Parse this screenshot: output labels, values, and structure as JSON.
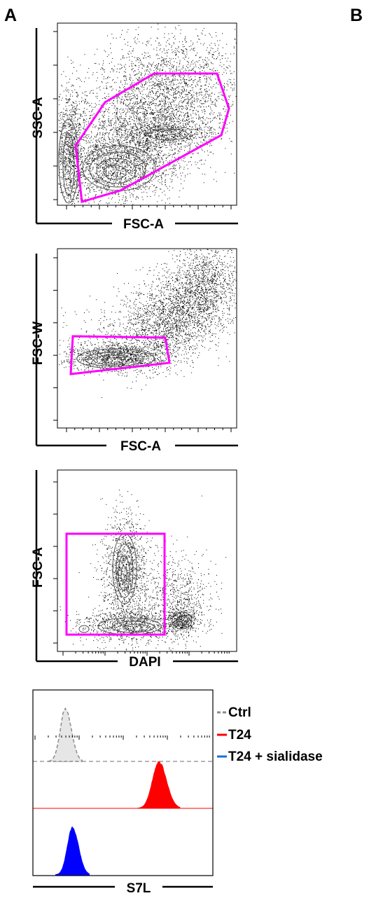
{
  "panel_labels": [
    "A",
    "B"
  ],
  "colors": {
    "gate": "#ff00ff",
    "ctrl": "#8c8c8c",
    "ctrl_fill": "#e6e6e6",
    "t24": "#ff0000",
    "sialidase": "#0000ff",
    "sialidase_legend": "#1a6fd6"
  },
  "chart_data": [
    {
      "type": "scatter",
      "subtype": "flow-cytometry density/contour plot with polygon gate",
      "xlabel": "FSC-A",
      "ylabel": "SSC-A",
      "gate": "polygon (cells)"
    },
    {
      "type": "scatter",
      "subtype": "flow-cytometry density/contour plot with polygon gate",
      "xlabel": "FSC-A",
      "ylabel": "FSC-W",
      "gate": "polygon (singlets)"
    },
    {
      "type": "scatter",
      "subtype": "flow-cytometry density/contour plot with rectangle gate",
      "xlabel": "DAPI",
      "ylabel": "FSC-A",
      "x_scale": "log",
      "gate": "rectangle (live cells)"
    },
    {
      "type": "area",
      "subtype": "stacked offset histograms",
      "xlabel": "S7L",
      "x_scale": "log",
      "series": [
        {
          "name": "Ctrl",
          "style": "dashed",
          "color": "#8c8c8c",
          "fill": "#e6e6e6",
          "peak_x_fraction": 0.18
        },
        {
          "name": "T24",
          "style": "solid",
          "color": "#ff0000",
          "fill": "#ff0000",
          "peak_x_fraction": 0.7
        },
        {
          "name": "T24 + sialidase",
          "style": "solid",
          "color": "#0000ff",
          "fill": "#0000ff",
          "peak_x_fraction": 0.22
        }
      ],
      "legend_position": "right"
    }
  ]
}
